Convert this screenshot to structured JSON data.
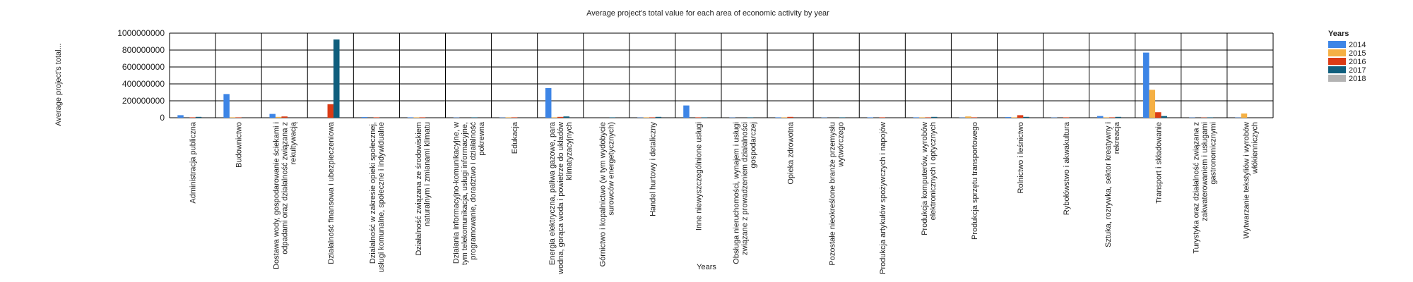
{
  "chart_data": {
    "type": "bar",
    "title": "Average project's total value for each area of economic activity by year",
    "xlabel": "Years",
    "ylabel": "Average project's total...",
    "ylim": [
      0,
      1000000000
    ],
    "yticks": [
      "0",
      "200000000",
      "400000000",
      "600000000",
      "800000000",
      "1000000000"
    ],
    "ytick_values": [
      0,
      200000000,
      400000000,
      600000000,
      800000000,
      1000000000
    ],
    "grid": true,
    "legend_title": "Years",
    "legend_position": "top-right",
    "categories": [
      "Administracja publiczna",
      "Budownictwo",
      "Dostawa wody, gospodarowanie ściekami i odpadami oraz działalność związana z rekultywacją",
      "Działalność finansowa i ubezpieczeniowa",
      "Działalność w zakresie opieki społecznej, usługi komunalne, społeczne i indywidualne",
      "Działalność związana ze środowiskiem naturalnym i zmianami klimatu",
      "Działania informacyjno-komunikacyjne, w tym telekomunikacja, usługi informacyjne, programowanie, doradztwo i działalność pokrewna",
      "Edukacja",
      "Energia elektryczna, paliwa gazowe, para wodna, gorąca woda i powietrze do układów klimatyzacyjnych",
      "Górnictwo i kopalnictwo (w tym wydobycie surowców energetycznych)",
      "Handel hurtowy i detaliczny",
      "Inne niewyszczególnione usługi",
      "Obsługa nieruchomości, wynajem i usługi związane z prowadzeniem działalności gospodarczej",
      "Opieka zdrowotna",
      "Pozostałe nieokreślone branże przemysłu wytwórczego",
      "Produkcja artykułów spożywczych i napojów",
      "Produkcja komputerów, wyrobów elektronicznych i optycznych",
      "Produkcja sprzętu transportowego",
      "Rolnictwo i leśnictwo",
      "Rybołówstwo i akwakultura",
      "Sztuka, rozrywka, sektor kreatywny i rekreacja",
      "Transport i składowanie",
      "Turystyka oraz działalność związana z zakwaterowaniem i usługami gastronomicznymi",
      "Wytwarzanie tekstyliów i wyrobów włókienniczych"
    ],
    "series": [
      {
        "name": "2014",
        "color": "#3d85e6",
        "values": [
          30000000,
          280000000,
          45000000,
          0,
          8000000,
          5000000,
          3000000,
          3000000,
          350000000,
          0,
          3000000,
          145000000,
          3000000,
          5000000,
          3000000,
          5000000,
          5000000,
          3000000,
          8000000,
          3000000,
          20000000,
          770000000,
          3000000,
          3000000
        ]
      },
      {
        "name": "2015",
        "color": "#f5b044",
        "values": [
          0,
          5000000,
          10000000,
          0,
          0,
          5000000,
          0,
          5000000,
          5000000,
          0,
          5000000,
          0,
          0,
          5000000,
          0,
          0,
          5000000,
          15000000,
          5000000,
          0,
          5000000,
          330000000,
          0,
          50000000
        ]
      },
      {
        "name": "2016",
        "color": "#db3b15",
        "values": [
          5000000,
          5000000,
          15000000,
          160000000,
          5000000,
          5000000,
          0,
          5000000,
          10000000,
          0,
          5000000,
          5000000,
          0,
          10000000,
          0,
          5000000,
          5000000,
          5000000,
          30000000,
          5000000,
          5000000,
          65000000,
          3000000,
          0
        ]
      },
      {
        "name": "2017",
        "color": "#0f5e7d",
        "values": [
          10000000,
          0,
          0,
          925000000,
          0,
          0,
          5000000,
          0,
          15000000,
          5000000,
          10000000,
          5000000,
          5000000,
          0,
          5000000,
          0,
          10000000,
          0,
          10000000,
          0,
          10000000,
          20000000,
          5000000,
          0
        ]
      },
      {
        "name": "2018",
        "color": "#b3b3b3",
        "values": [
          0,
          0,
          0,
          0,
          0,
          0,
          0,
          0,
          0,
          0,
          0,
          0,
          0,
          0,
          0,
          0,
          0,
          0,
          0,
          0,
          0,
          0,
          0,
          0
        ]
      }
    ]
  }
}
